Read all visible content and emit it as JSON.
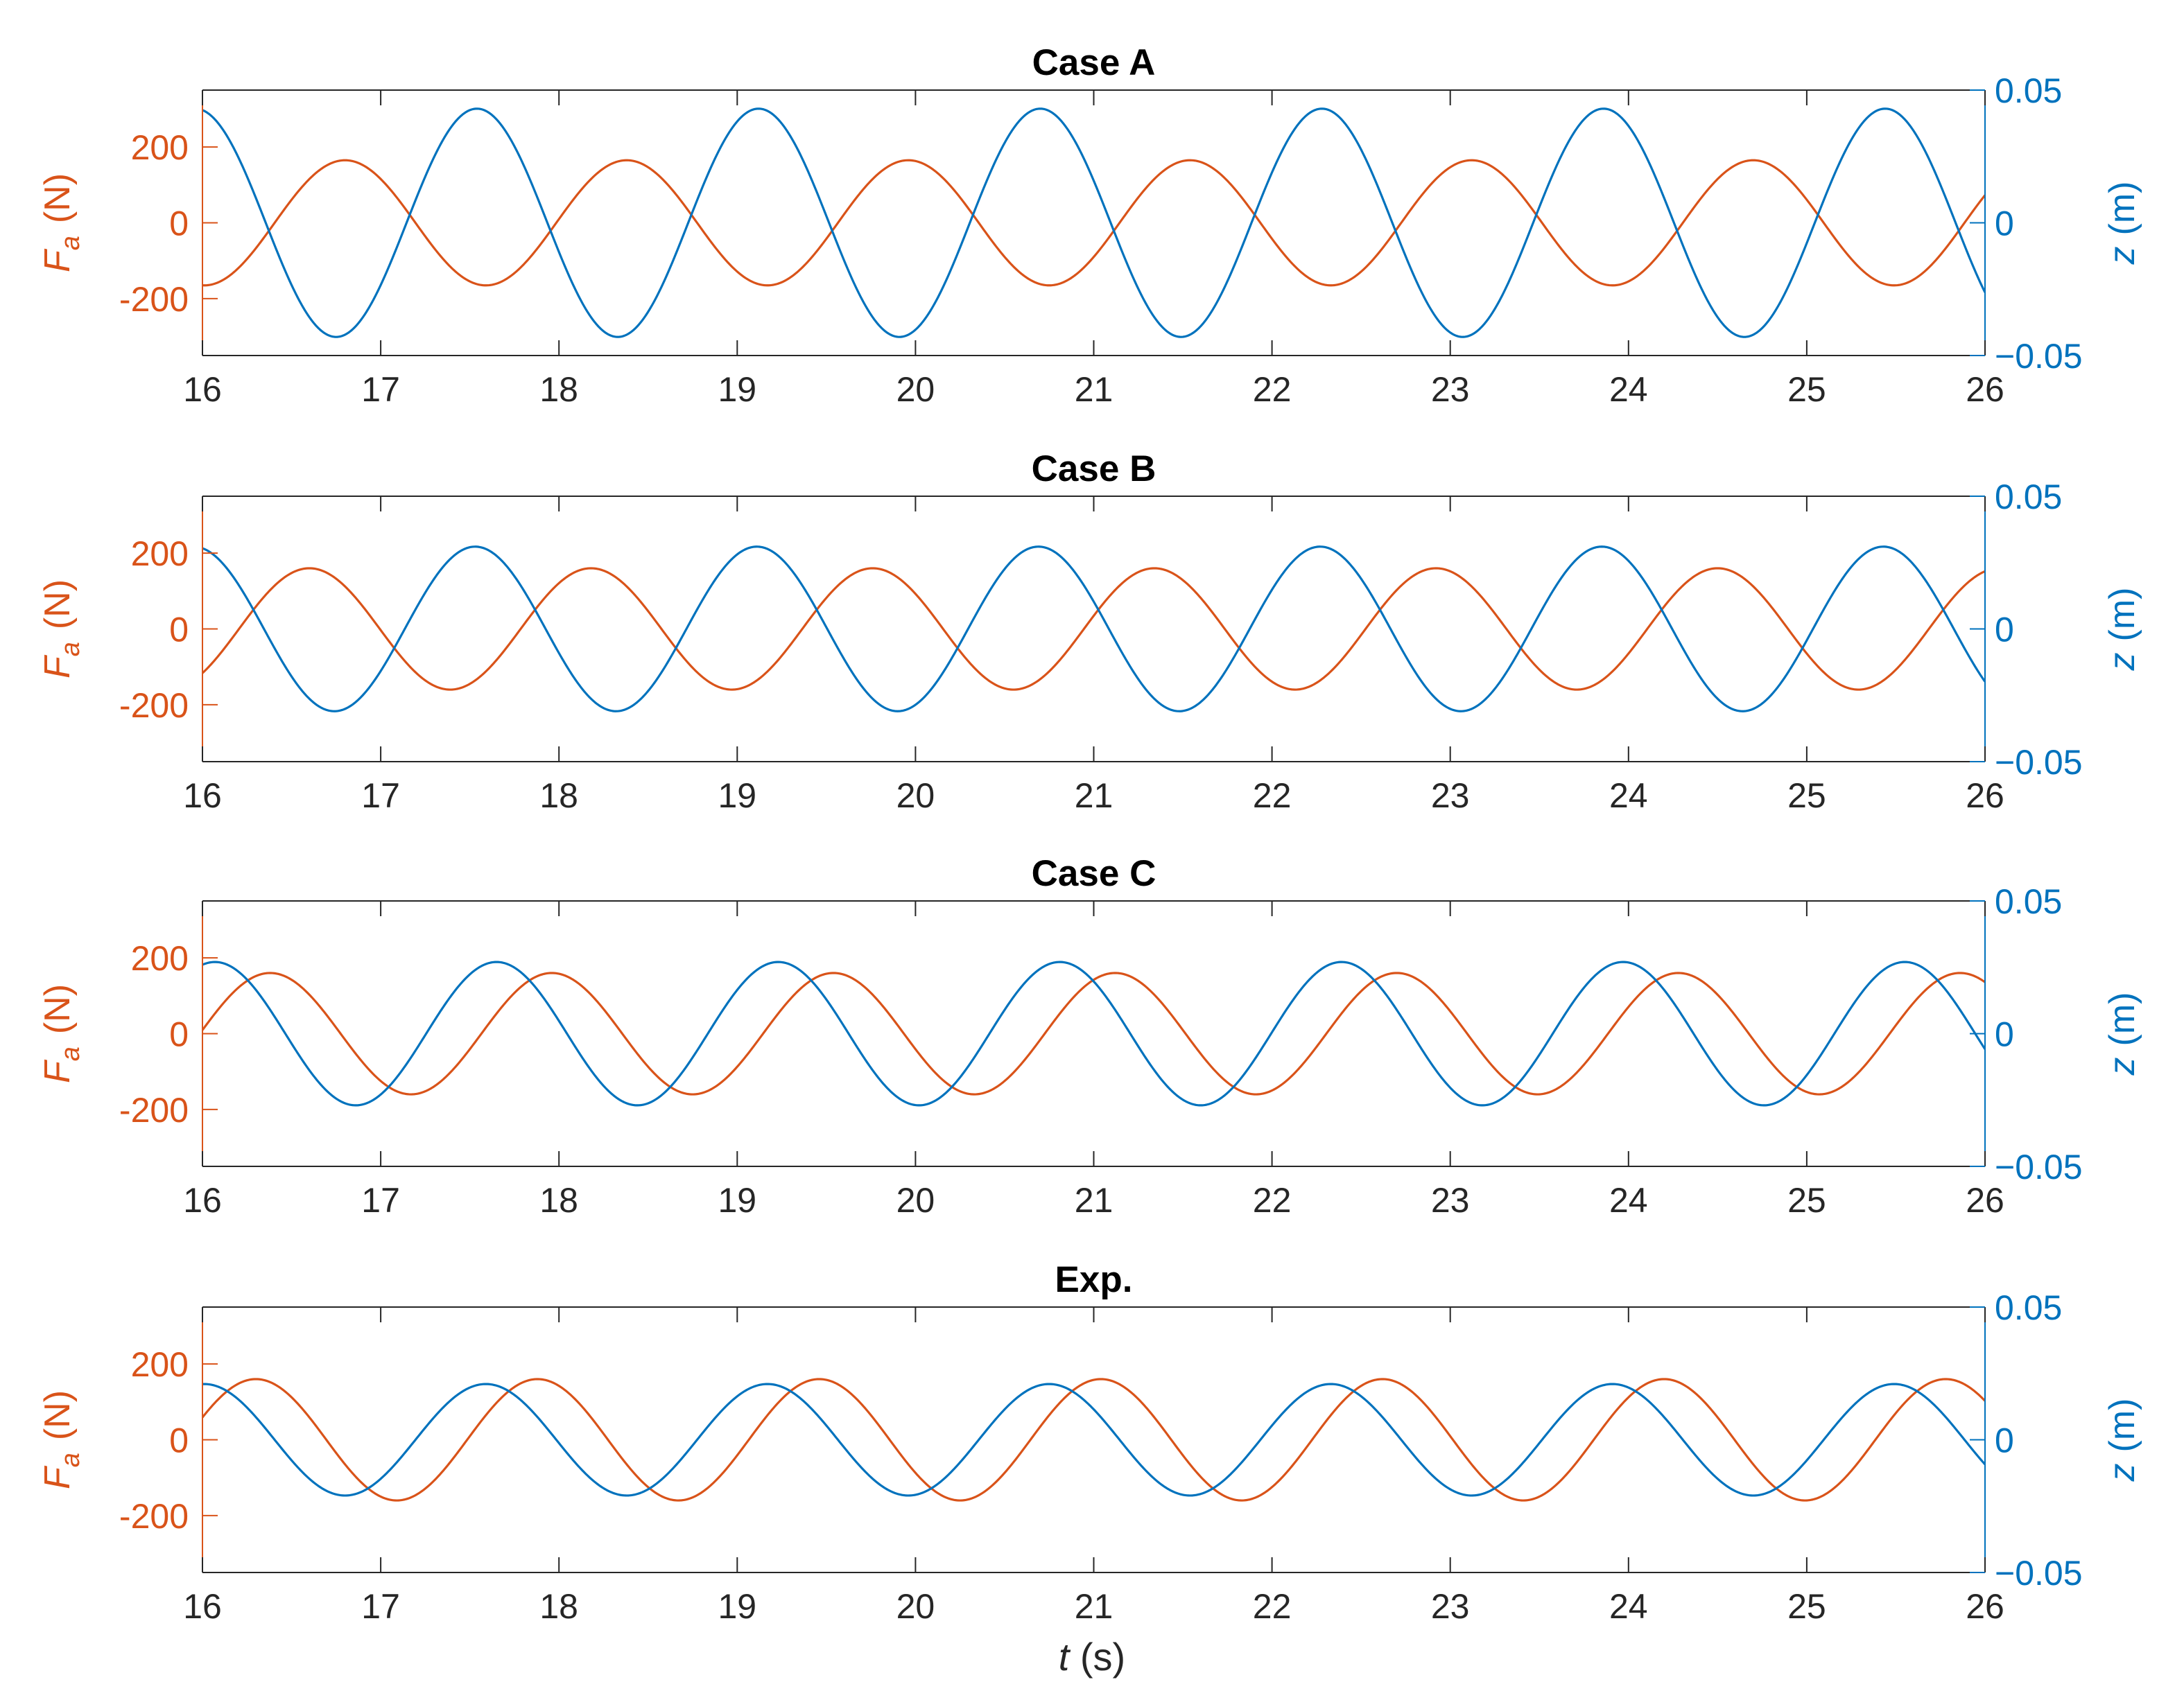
{
  "colors": {
    "force": "#d95319",
    "displacement": "#0072bd",
    "axis": "#262626"
  },
  "xlabel": {
    "var": "t",
    "unit": " (s)"
  },
  "chart_data": [
    {
      "type": "line",
      "title": "Case A",
      "x_range": [
        16,
        26
      ],
      "x_ticks": [
        "16",
        "17",
        "18",
        "19",
        "20",
        "21",
        "22",
        "23",
        "24",
        "25",
        "26"
      ],
      "left_axis": {
        "label_var": "F",
        "label_sub": "a",
        "label_unit": "(N)",
        "ylim": [
          -350,
          350
        ],
        "ticks": [
          200,
          0,
          -200
        ],
        "tick_labels": [
          "200",
          "0",
          "-200"
        ]
      },
      "right_axis": {
        "label_var": "z",
        "label_unit": "(m)",
        "ylim": [
          -0.05,
          0.05
        ],
        "ticks": [
          0.05,
          0,
          -0.05
        ],
        "tick_labels": [
          "0.05",
          "0",
          "−0.05"
        ]
      },
      "series": [
        {
          "axis": "left",
          "amplitude": 165,
          "period": 1.58,
          "crest_time": 16.8,
          "x_start": 16,
          "x_end": 26
        },
        {
          "axis": "right",
          "amplitude": 0.043,
          "period": 1.58,
          "crest_time": 17.54,
          "x_start": 16,
          "x_end": 26
        }
      ]
    },
    {
      "type": "line",
      "title": "Case B",
      "x_range": [
        16,
        26
      ],
      "x_ticks": [
        "16",
        "17",
        "18",
        "19",
        "20",
        "21",
        "22",
        "23",
        "24",
        "25",
        "26"
      ],
      "left_axis": {
        "label_var": "F",
        "label_sub": "a",
        "label_unit": "(N)",
        "ylim": [
          -350,
          350
        ],
        "ticks": [
          200,
          0,
          -200
        ],
        "tick_labels": [
          "200",
          "0",
          "-200"
        ]
      },
      "right_axis": {
        "label_var": "z",
        "label_unit": "(m)",
        "ylim": [
          -0.05,
          0.05
        ],
        "ticks": [
          0.05,
          0,
          -0.05
        ],
        "tick_labels": [
          "0.05",
          "0",
          "−0.05"
        ]
      },
      "series": [
        {
          "axis": "left",
          "amplitude": 160,
          "period": 1.58,
          "crest_time": 16.6,
          "x_start": 16,
          "x_end": 26
        },
        {
          "axis": "right",
          "amplitude": 0.031,
          "period": 1.58,
          "crest_time": 17.53,
          "x_start": 16,
          "x_end": 26
        }
      ]
    },
    {
      "type": "line",
      "title": "Case C",
      "x_range": [
        16,
        26
      ],
      "x_ticks": [
        "16",
        "17",
        "18",
        "19",
        "20",
        "21",
        "22",
        "23",
        "24",
        "25",
        "26"
      ],
      "left_axis": {
        "label_var": "F",
        "label_sub": "a",
        "label_unit": "(N)",
        "ylim": [
          -350,
          350
        ],
        "ticks": [
          200,
          0,
          -200
        ],
        "tick_labels": [
          "200",
          "0",
          "-200"
        ]
      },
      "right_axis": {
        "label_var": "z",
        "label_unit": "(m)",
        "ylim": [
          -0.05,
          0.05
        ],
        "ticks": [
          0.05,
          0,
          -0.05
        ],
        "tick_labels": [
          "0.05",
          "0",
          "−0.05"
        ]
      },
      "series": [
        {
          "axis": "left",
          "amplitude": 160,
          "period": 1.58,
          "crest_time": 16.38,
          "x_start": 16,
          "x_end": 26
        },
        {
          "axis": "right",
          "amplitude": 0.027,
          "period": 1.58,
          "crest_time": 17.65,
          "x_start": 16,
          "x_end": 26
        }
      ]
    },
    {
      "type": "line",
      "title": "Exp.",
      "x_range": [
        16,
        26
      ],
      "x_ticks": [
        "16",
        "17",
        "18",
        "19",
        "20",
        "21",
        "22",
        "23",
        "24",
        "25",
        "26"
      ],
      "left_axis": {
        "label_var": "F",
        "label_sub": "a",
        "label_unit": "(N)",
        "ylim": [
          -350,
          350
        ],
        "ticks": [
          200,
          0,
          -200
        ],
        "tick_labels": [
          "200",
          "0",
          "-200"
        ]
      },
      "right_axis": {
        "label_var": "z",
        "label_unit": "(m)",
        "ylim": [
          -0.05,
          0.05
        ],
        "ticks": [
          0.05,
          0,
          -0.05
        ],
        "tick_labels": [
          "0.05",
          "0",
          "−0.05"
        ]
      },
      "series": [
        {
          "axis": "left",
          "amplitude": 160,
          "period": 1.58,
          "crest_time": 16.3,
          "x_start": 16,
          "x_end": 26
        },
        {
          "axis": "right",
          "amplitude": 0.021,
          "period": 1.58,
          "crest_time": 17.59,
          "x_start": 16,
          "x_end": 26
        }
      ]
    }
  ]
}
